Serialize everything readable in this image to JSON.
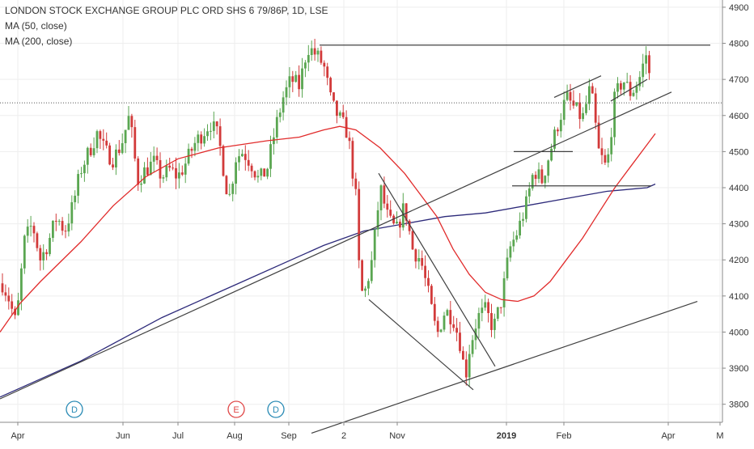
{
  "legend": {
    "title": "LONDON STOCK EXCHANGE GROUP PLC ORD SHS 6 79/86P, 1D, LSE",
    "ma50": "MA (50, close)",
    "ma200": "MA (200, close)"
  },
  "colors": {
    "up": "#5aa651",
    "down": "#d23a3a",
    "ma50": "#e12b2b",
    "ma200": "#2d2a7a",
    "trendline": "#404040",
    "grid": "#eeeeee"
  },
  "chart_data": {
    "type": "candlestick",
    "ylim": [
      3750,
      4920
    ],
    "y_ticks": [
      3800,
      3900,
      4000,
      4100,
      4200,
      4300,
      4400,
      4500,
      4600,
      4700,
      4800,
      4900
    ],
    "x_ticks": [
      "Apr",
      "Jun",
      "Jul",
      "Aug",
      "Sep",
      "2",
      "Nov",
      "2019",
      "Feb",
      "Apr",
      "M"
    ],
    "last_price_line": 4635,
    "events": [
      {
        "label": "D",
        "color": "#2a8bb5"
      },
      {
        "label": "E",
        "color": "#e04848"
      },
      {
        "label": "D",
        "color": "#2a8bb5"
      }
    ],
    "price_path": [
      [
        0,
        4150
      ],
      [
        10,
        4100
      ],
      [
        20,
        4020
      ],
      [
        30,
        4250
      ],
      [
        40,
        4300
      ],
      [
        50,
        4200
      ],
      [
        60,
        4250
      ],
      [
        70,
        4320
      ],
      [
        80,
        4280
      ],
      [
        90,
        4350
      ],
      [
        100,
        4450
      ],
      [
        110,
        4500
      ],
      [
        120,
        4550
      ],
      [
        130,
        4500
      ],
      [
        140,
        4480
      ],
      [
        150,
        4520
      ],
      [
        160,
        4600
      ],
      [
        170,
        4420
      ],
      [
        180,
        4450
      ],
      [
        190,
        4470
      ],
      [
        200,
        4430
      ],
      [
        210,
        4450
      ],
      [
        220,
        4430
      ],
      [
        230,
        4470
      ],
      [
        240,
        4520
      ],
      [
        250,
        4550
      ],
      [
        260,
        4580
      ],
      [
        270,
        4540
      ],
      [
        280,
        4400
      ],
      [
        285,
        4370
      ],
      [
        290,
        4480
      ],
      [
        300,
        4500
      ],
      [
        310,
        4470
      ],
      [
        320,
        4420
      ],
      [
        330,
        4450
      ],
      [
        340,
        4560
      ],
      [
        350,
        4650
      ],
      [
        360,
        4700
      ],
      [
        370,
        4680
      ],
      [
        380,
        4790
      ],
      [
        390,
        4770
      ],
      [
        400,
        4740
      ],
      [
        410,
        4630
      ],
      [
        420,
        4590
      ],
      [
        430,
        4550
      ],
      [
        440,
        4370
      ],
      [
        445,
        4120
      ],
      [
        450,
        4100
      ],
      [
        460,
        4200
      ],
      [
        470,
        4400
      ],
      [
        480,
        4310
      ],
      [
        490,
        4280
      ],
      [
        500,
        4350
      ],
      [
        510,
        4230
      ],
      [
        520,
        4200
      ],
      [
        530,
        4100
      ],
      [
        540,
        3990
      ],
      [
        550,
        4060
      ],
      [
        560,
        4040
      ],
      [
        570,
        3960
      ],
      [
        575,
        3870
      ],
      [
        580,
        3950
      ],
      [
        590,
        4040
      ],
      [
        600,
        4060
      ],
      [
        610,
        4010
      ],
      [
        620,
        4090
      ],
      [
        630,
        4230
      ],
      [
        640,
        4280
      ],
      [
        650,
        4350
      ],
      [
        660,
        4450
      ],
      [
        670,
        4420
      ],
      [
        680,
        4500
      ],
      [
        690,
        4580
      ],
      [
        700,
        4650
      ],
      [
        710,
        4620
      ],
      [
        720,
        4590
      ],
      [
        730,
        4680
      ],
      [
        740,
        4500
      ],
      [
        750,
        4450
      ],
      [
        760,
        4650
      ],
      [
        770,
        4700
      ],
      [
        780,
        4660
      ],
      [
        790,
        4700
      ],
      [
        800,
        4780
      ],
      [
        805,
        4640
      ]
    ],
    "ma50": [
      [
        0,
        4000
      ],
      [
        25,
        4080
      ],
      [
        50,
        4140
      ],
      [
        100,
        4250
      ],
      [
        140,
        4350
      ],
      [
        180,
        4430
      ],
      [
        220,
        4480
      ],
      [
        270,
        4510
      ],
      [
        330,
        4530
      ],
      [
        370,
        4540
      ],
      [
        400,
        4560
      ],
      [
        420,
        4570
      ],
      [
        440,
        4560
      ],
      [
        470,
        4510
      ],
      [
        500,
        4440
      ],
      [
        540,
        4320
      ],
      [
        560,
        4230
      ],
      [
        580,
        4160
      ],
      [
        600,
        4110
      ],
      [
        620,
        4090
      ],
      [
        640,
        4085
      ],
      [
        660,
        4100
      ],
      [
        680,
        4140
      ],
      [
        700,
        4200
      ],
      [
        720,
        4260
      ],
      [
        740,
        4330
      ],
      [
        760,
        4400
      ],
      [
        780,
        4460
      ],
      [
        800,
        4520
      ],
      [
        810,
        4550
      ]
    ],
    "ma200": [
      [
        0,
        3820
      ],
      [
        100,
        3920
      ],
      [
        200,
        4040
      ],
      [
        300,
        4140
      ],
      [
        360,
        4200
      ],
      [
        400,
        4240
      ],
      [
        450,
        4280
      ],
      [
        500,
        4300
      ],
      [
        550,
        4320
      ],
      [
        600,
        4330
      ],
      [
        650,
        4350
      ],
      [
        700,
        4370
      ],
      [
        750,
        4390
      ],
      [
        800,
        4400
      ],
      [
        810,
        4410
      ]
    ]
  }
}
